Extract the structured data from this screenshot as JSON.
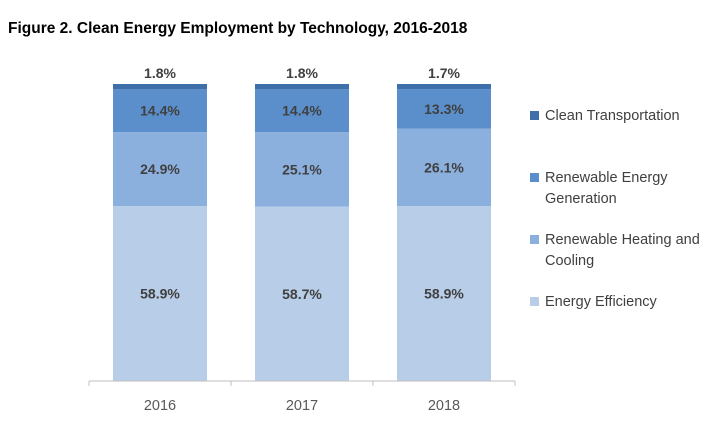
{
  "chart_data": {
    "type": "bar",
    "stacked": true,
    "title": "Figure 2. Clean Energy Employment by Technology, 2016-2018",
    "categories": [
      "2016",
      "2017",
      "2018"
    ],
    "series": [
      {
        "name": "Energy Efficiency",
        "values": [
          58.9,
          58.7,
          58.9
        ],
        "labels": [
          "58.9%",
          "58.7%",
          "58.9%"
        ],
        "color": "#b8cde8"
      },
      {
        "name": "Renewable Heating and Cooling",
        "values": [
          24.9,
          25.1,
          26.1
        ],
        "labels": [
          "24.9%",
          "25.1%",
          "26.1%"
        ],
        "color": "#8cb0de"
      },
      {
        "name": "Renewable Energy Generation",
        "values": [
          14.4,
          14.4,
          13.3
        ],
        "labels": [
          "14.4%",
          "14.4%",
          "13.3%"
        ],
        "color": "#5b8fcb"
      },
      {
        "name": "Clean Transportation",
        "values": [
          1.8,
          1.8,
          1.7
        ],
        "labels": [
          "1.8%",
          "1.8%",
          "1.7%"
        ],
        "color": "#3e6fa8"
      }
    ],
    "legend_order": [
      "Clean Transportation",
      "Renewable Energy Generation",
      "Renewable Heating and Cooling",
      "Energy Efficiency"
    ],
    "ylim": [
      0,
      100
    ],
    "grid": false,
    "legend_position": "right"
  }
}
